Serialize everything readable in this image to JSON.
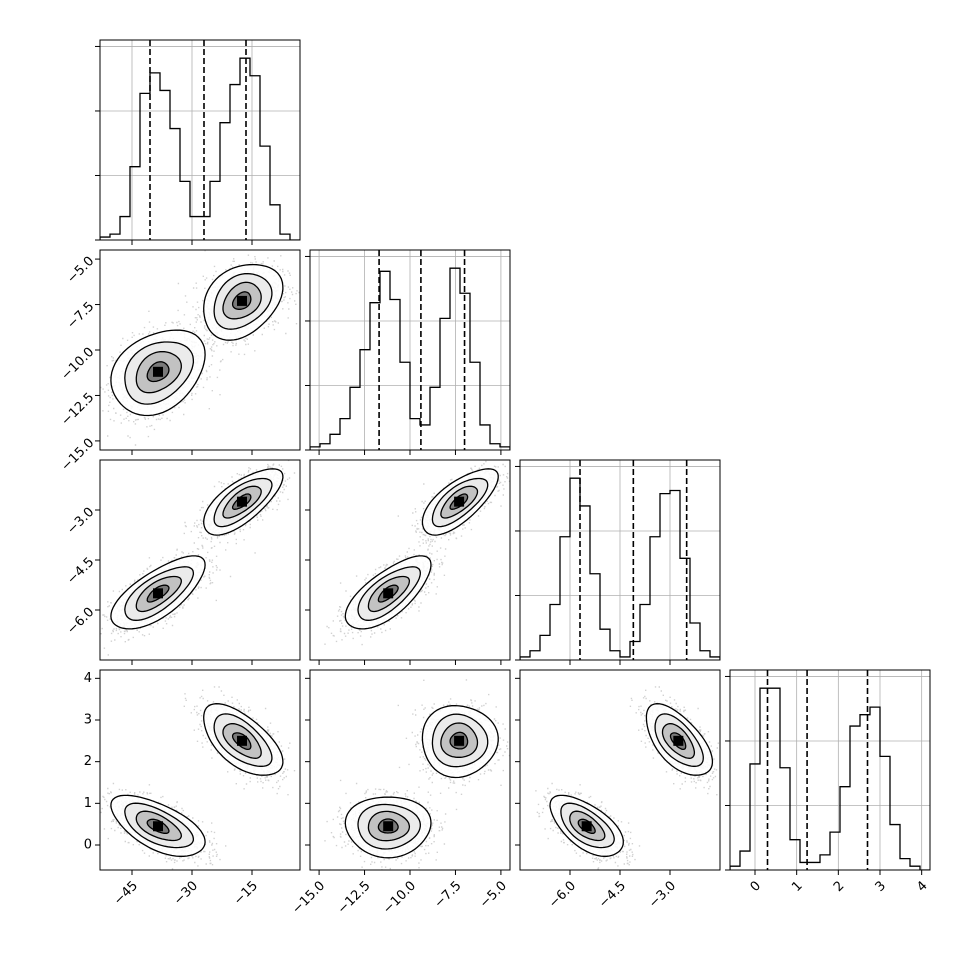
{
  "chart_data": {
    "type": "corner",
    "parameters": [
      {
        "range": [
          -53,
          -3
        ],
        "ticks": [
          -45,
          -30,
          -15
        ],
        "tick_labels": [
          "−45",
          "−30",
          "−15"
        ],
        "quantiles": [
          -40.5,
          -27.0,
          -16.5
        ],
        "hist": [
          1,
          2,
          8,
          25,
          50,
          57,
          51,
          38,
          20,
          8,
          8,
          20,
          40,
          53,
          62,
          56,
          32,
          12,
          2,
          0
        ],
        "modes": [
          {
            "mean": -38.5,
            "sd": 4.5,
            "weight": 0.5
          },
          {
            "mean": -17.5,
            "sd": 3.8,
            "weight": 0.5
          }
        ]
      },
      {
        "range": [
          -15.5,
          -4.5
        ],
        "ticks": [
          -15.0,
          -12.5,
          -10.0,
          -7.5,
          -5.0
        ],
        "tick_labels": [
          "−15.0",
          "−12.5",
          "−10.0",
          "−7.5",
          "−5.0"
        ],
        "quantiles": [
          -11.7,
          -9.4,
          -7.0
        ],
        "hist": [
          1,
          2,
          5,
          10,
          20,
          32,
          47,
          57,
          48,
          28,
          10,
          8,
          20,
          42,
          58,
          50,
          28,
          8,
          2,
          1
        ],
        "modes": [
          {
            "mean": -11.2,
            "sd": 0.9,
            "weight": 0.5
          },
          {
            "mean": -7.3,
            "sd": 0.8,
            "weight": 0.5
          }
        ]
      },
      {
        "range": [
          -7.5,
          -1.5
        ],
        "ticks": [
          -6.0,
          -4.5,
          -3.0
        ],
        "tick_labels": [
          "−6.0",
          "−4.5",
          "−3.0"
        ],
        "quantiles": [
          -5.7,
          -4.1,
          -2.5
        ],
        "hist": [
          1,
          3,
          8,
          18,
          40,
          59,
          50,
          28,
          10,
          3,
          1,
          6,
          18,
          40,
          54,
          55,
          33,
          12,
          3,
          1
        ],
        "modes": [
          {
            "mean": -5.5,
            "sd": 0.42,
            "weight": 0.5
          },
          {
            "mean": -2.75,
            "sd": 0.38,
            "weight": 0.5
          }
        ]
      },
      {
        "range": [
          -0.6,
          4.2
        ],
        "ticks": [
          0,
          1,
          2,
          3,
          4
        ],
        "tick_labels": [
          "0",
          "1",
          "2",
          "3",
          "4"
        ],
        "quantiles": [
          0.3,
          1.25,
          2.7
        ],
        "hist": [
          1,
          5,
          28,
          48,
          48,
          27,
          8,
          2,
          2,
          4,
          10,
          22,
          38,
          41,
          43,
          30,
          12,
          3,
          1,
          0
        ],
        "modes": [
          {
            "mean": 0.45,
            "sd": 0.28,
            "weight": 0.5
          },
          {
            "mean": 2.5,
            "sd": 0.33,
            "weight": 0.5
          }
        ]
      }
    ],
    "correlations": [
      [
        1.0,
        0.3,
        0.7,
        -0.6
      ],
      [
        0.3,
        1.0,
        0.7,
        0.0
      ],
      [
        0.7,
        0.7,
        1.0,
        -0.6
      ],
      [
        -0.6,
        0.0,
        -0.6,
        1.0
      ]
    ],
    "grid": true,
    "colors": {
      "line": "#000000",
      "grid": "#b0b0b0",
      "background": "#ffffff"
    }
  }
}
